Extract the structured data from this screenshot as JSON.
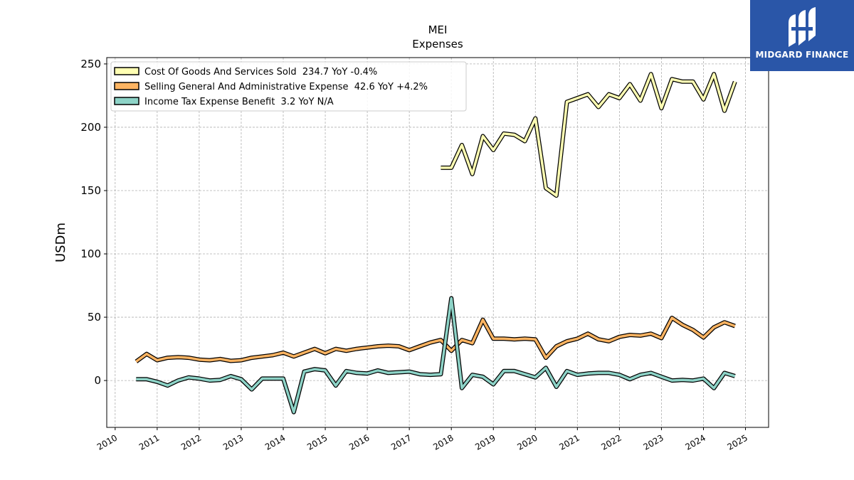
{
  "brand": {
    "name": "MIDGARD FINANCE",
    "logo_icon": "midgard-logo-icon",
    "background": "#2a56a8"
  },
  "chart_data": {
    "type": "line",
    "title": "MEI",
    "subtitle": "Expenses",
    "ylabel": "USDm",
    "xlabel": "",
    "xlim": [
      2009.8,
      2025.55
    ],
    "ylim": [
      -37,
      255
    ],
    "xticks": [
      2010,
      2011,
      2012,
      2013,
      2014,
      2015,
      2016,
      2017,
      2018,
      2019,
      2020,
      2021,
      2022,
      2023,
      2024,
      2025
    ],
    "yticks": [
      0,
      50,
      100,
      150,
      200,
      250
    ],
    "grid": true,
    "legend_position": "top-left",
    "series": [
      {
        "name": "Cost Of Goods And Services Sold  234.7 YoY -0.4%",
        "color": "#ffffb3",
        "x": [
          2017.75,
          2018.0,
          2018.25,
          2018.5,
          2018.75,
          2019.0,
          2019.25,
          2019.5,
          2019.75,
          2020.0,
          2020.25,
          2020.5,
          2020.75,
          2021.0,
          2021.25,
          2021.5,
          2021.75,
          2022.0,
          2022.25,
          2022.5,
          2022.75,
          2023.0,
          2023.25,
          2023.5,
          2023.75,
          2024.0,
          2024.25,
          2024.5,
          2024.75
        ],
        "values": [
          168,
          168,
          186,
          163,
          193,
          182,
          195,
          194,
          189,
          207,
          152,
          146,
          220,
          223,
          226,
          216,
          226,
          223,
          234,
          221,
          242,
          215,
          238,
          236,
          236,
          222,
          242,
          213,
          236
        ]
      },
      {
        "name": "Selling General And Administrative Expense  42.6 YoY +4.2%",
        "color": "#fdb462",
        "x": [
          2010.5,
          2010.75,
          2011.0,
          2011.25,
          2011.5,
          2011.75,
          2012.0,
          2012.25,
          2012.5,
          2012.75,
          2013.0,
          2013.25,
          2013.5,
          2013.75,
          2014.0,
          2014.25,
          2014.5,
          2014.75,
          2015.0,
          2015.25,
          2015.5,
          2015.75,
          2016.0,
          2016.25,
          2016.5,
          2016.75,
          2017.0,
          2017.25,
          2017.5,
          2017.75,
          2018.0,
          2018.25,
          2018.5,
          2018.75,
          2019.0,
          2019.25,
          2019.5,
          2019.75,
          2020.0,
          2020.25,
          2020.5,
          2020.75,
          2021.0,
          2021.25,
          2021.5,
          2021.75,
          2022.0,
          2022.25,
          2022.5,
          2022.75,
          2023.0,
          2023.25,
          2023.5,
          2023.75,
          2024.0,
          2024.25,
          2024.5,
          2024.75
        ],
        "values": [
          15,
          21,
          16,
          18,
          18.5,
          18,
          16.5,
          16,
          17,
          15.5,
          16,
          18,
          19,
          20,
          22,
          19,
          22,
          25,
          21.5,
          25,
          23.5,
          25,
          26,
          27,
          27.5,
          27,
          24,
          27,
          30,
          32,
          23.5,
          32,
          29.5,
          48,
          33,
          33,
          32.5,
          33,
          32.5,
          18,
          27,
          31,
          33,
          37,
          32.5,
          31,
          34.5,
          36,
          35.5,
          37,
          33.5,
          49.5,
          44,
          40,
          34,
          42,
          46,
          43
        ]
      },
      {
        "name": "Income Tax Expense Benefit  3.2 YoY N/A",
        "color": "#8dd3c7",
        "x": [
          2010.5,
          2010.75,
          2011.0,
          2011.25,
          2011.5,
          2011.75,
          2012.0,
          2012.25,
          2012.5,
          2012.75,
          2013.0,
          2013.25,
          2013.5,
          2013.75,
          2014.0,
          2014.25,
          2014.5,
          2014.75,
          2015.0,
          2015.25,
          2015.5,
          2015.75,
          2016.0,
          2016.25,
          2016.5,
          2016.75,
          2017.0,
          2017.25,
          2017.5,
          2017.75,
          2018.0,
          2018.25,
          2018.5,
          2018.75,
          2019.0,
          2019.25,
          2019.5,
          2019.75,
          2020.0,
          2020.25,
          2020.5,
          2020.75,
          2021.0,
          2021.25,
          2021.5,
          2021.75,
          2022.0,
          2022.25,
          2022.5,
          2022.75,
          2023.0,
          2023.25,
          2023.5,
          2023.75,
          2024.0,
          2024.25,
          2024.5,
          2024.75
        ],
        "values": [
          1,
          1,
          -1,
          -4,
          0,
          2.5,
          1.5,
          0,
          0.5,
          3.5,
          1,
          -7,
          1.5,
          1.5,
          1.5,
          -25,
          7,
          9,
          8,
          -4,
          7.5,
          6,
          5.5,
          8,
          6,
          6.5,
          7,
          5,
          4.5,
          5,
          65,
          -6,
          4.5,
          3,
          -3,
          7.5,
          7.5,
          5,
          2.5,
          10,
          -5,
          7.5,
          4.5,
          5.5,
          6,
          6,
          4.5,
          1,
          4.5,
          6,
          3,
          0,
          0.5,
          0,
          1.5,
          -6,
          6,
          3.5
        ]
      }
    ]
  }
}
